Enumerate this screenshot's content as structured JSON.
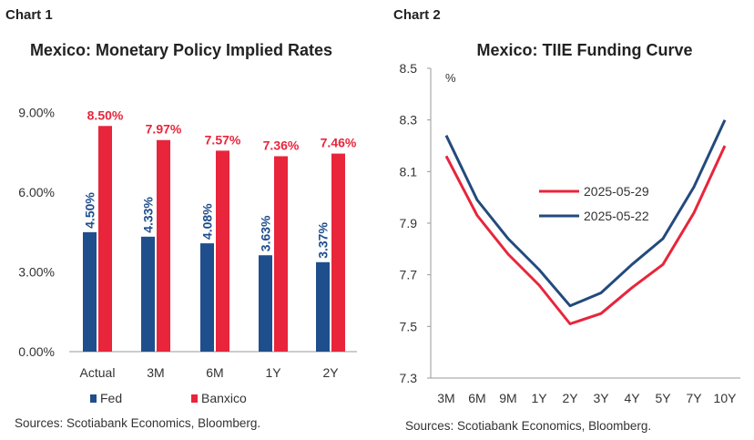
{
  "panels": [
    {
      "heading": "Chart 1",
      "source": "Sources: Scotiabank Economics, Bloomberg."
    },
    {
      "heading": "Chart 2",
      "source": "Sources: Scotiabank Economics, Bloomberg."
    }
  ],
  "colors": {
    "fed": "#1f4e8c",
    "banxico": "#e8253b",
    "navy_line": "#234a7c",
    "red_line": "#e8253b",
    "axis": "#999999"
  },
  "chart_data": [
    {
      "type": "bar",
      "title": "Mexico: Monetary Policy Implied Rates",
      "categories": [
        "Actual",
        "3M",
        "6M",
        "1Y",
        "2Y"
      ],
      "series": [
        {
          "name": "Fed",
          "values": [
            4.5,
            4.33,
            4.08,
            3.63,
            3.37
          ],
          "labels": [
            "4.50%",
            "4.33%",
            "4.08%",
            "3.63%",
            "3.37%"
          ],
          "color": "#1f4e8c"
        },
        {
          "name": "Banxico",
          "values": [
            8.5,
            7.97,
            7.57,
            7.36,
            7.46
          ],
          "labels": [
            "8.50%",
            "7.97%",
            "7.57%",
            "7.36%",
            "7.46%"
          ],
          "color": "#e8253b"
        }
      ],
      "yticks": [
        "0.00%",
        "3.00%",
        "6.00%",
        "9.00%"
      ],
      "ytick_values": [
        0,
        3,
        6,
        9
      ],
      "ylim": [
        0,
        10.5
      ],
      "grid": false,
      "legend": "bottom"
    },
    {
      "type": "line",
      "title": "Mexico: TIIE Funding Curve",
      "ylabel": "%",
      "x": [
        "3M",
        "6M",
        "9M",
        "1Y",
        "2Y",
        "3Y",
        "4Y",
        "5Y",
        "7Y",
        "10Y"
      ],
      "series": [
        {
          "name": "2025-05-29",
          "values": [
            8.16,
            7.93,
            7.78,
            7.66,
            7.51,
            7.55,
            7.65,
            7.74,
            7.94,
            8.2
          ],
          "color": "#e8253b"
        },
        {
          "name": "2025-05-22",
          "values": [
            8.24,
            7.99,
            7.84,
            7.72,
            7.58,
            7.63,
            7.74,
            7.84,
            8.04,
            8.3
          ],
          "color": "#234a7c"
        }
      ],
      "yticks": [
        "7.3",
        "7.5",
        "7.7",
        "7.9",
        "8.1",
        "8.3",
        "8.5"
      ],
      "ytick_values": [
        7.3,
        7.5,
        7.7,
        7.9,
        8.1,
        8.3,
        8.5
      ],
      "ylim": [
        7.3,
        8.5
      ],
      "grid": false,
      "legend": "center-right"
    }
  ]
}
